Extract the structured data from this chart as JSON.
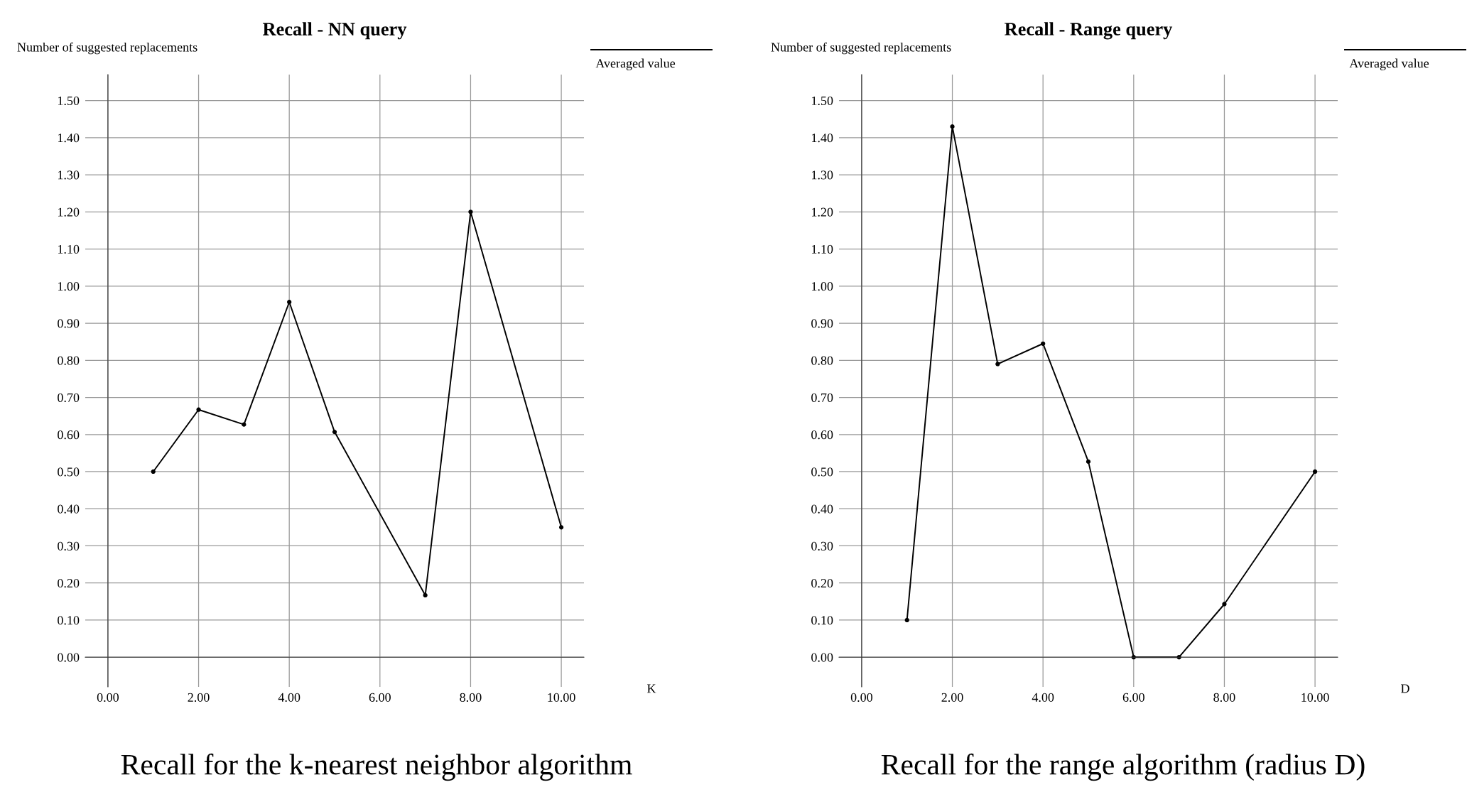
{
  "chart_data": [
    {
      "type": "line",
      "title": "Recall - NN query",
      "xlabel": "K",
      "ylabel": "Number of suggested replacements",
      "x": [
        1,
        2,
        3,
        4,
        5,
        7,
        8,
        10
      ],
      "series": [
        {
          "name": "Averaged value",
          "color": "#000000",
          "values": [
            0.5,
            0.667,
            0.627,
            0.957,
            0.607,
            0.167,
            1.2,
            0.35
          ]
        }
      ],
      "xlim": [
        -0.5,
        10.5
      ],
      "ylim": [
        -0.08,
        1.57
      ],
      "xticks": [
        {
          "value": 0,
          "label": "0.00"
        },
        {
          "value": 2,
          "label": "2.00"
        },
        {
          "value": 4,
          "label": "4.00"
        },
        {
          "value": 6,
          "label": "6.00"
        },
        {
          "value": 8,
          "label": "8.00"
        },
        {
          "value": 10,
          "label": "10.00"
        }
      ],
      "yticks": [
        {
          "value": 0,
          "label": "0.00"
        },
        {
          "value": 0.1,
          "label": "0.10"
        },
        {
          "value": 0.2,
          "label": "0.20"
        },
        {
          "value": 0.3,
          "label": "0.30"
        },
        {
          "value": 0.4,
          "label": "0.40"
        },
        {
          "value": 0.5,
          "label": "0.50"
        },
        {
          "value": 0.6,
          "label": "0.60"
        },
        {
          "value": 0.7,
          "label": "0.70"
        },
        {
          "value": 0.8,
          "label": "0.80"
        },
        {
          "value": 0.9,
          "label": "0.90"
        },
        {
          "value": 1.0,
          "label": "1.00"
        },
        {
          "value": 1.1,
          "label": "1.10"
        },
        {
          "value": 1.2,
          "label": "1.20"
        },
        {
          "value": 1.3,
          "label": "1.30"
        },
        {
          "value": 1.4,
          "label": "1.40"
        },
        {
          "value": 1.5,
          "label": "1.50"
        }
      ],
      "grid": true,
      "legend": "top right",
      "marker": "circle",
      "line_style": "solid",
      "annotations": [
        "Recall for the k-nearest neighbor algorithm"
      ]
    },
    {
      "type": "line",
      "title": "Recall - Range query",
      "xlabel": "D",
      "ylabel": "Number of suggested replacements",
      "x": [
        1,
        2,
        3,
        4,
        5,
        6,
        7,
        8,
        10
      ],
      "series": [
        {
          "name": "Averaged value",
          "color": "#000000",
          "values": [
            0.1,
            1.43,
            0.79,
            0.845,
            0.527,
            0.0,
            0.0,
            0.143,
            0.5
          ]
        }
      ],
      "xlim": [
        -0.5,
        10.5
      ],
      "ylim": [
        -0.08,
        1.57
      ],
      "xticks": [
        {
          "value": 0,
          "label": "0.00"
        },
        {
          "value": 2,
          "label": "2.00"
        },
        {
          "value": 4,
          "label": "4.00"
        },
        {
          "value": 6,
          "label": "6.00"
        },
        {
          "value": 8,
          "label": "8.00"
        },
        {
          "value": 10,
          "label": "10.00"
        }
      ],
      "yticks": [
        {
          "value": 0,
          "label": "0.00"
        },
        {
          "value": 0.1,
          "label": "0.10"
        },
        {
          "value": 0.2,
          "label": "0.20"
        },
        {
          "value": 0.3,
          "label": "0.30"
        },
        {
          "value": 0.4,
          "label": "0.40"
        },
        {
          "value": 0.5,
          "label": "0.50"
        },
        {
          "value": 0.6,
          "label": "0.60"
        },
        {
          "value": 0.7,
          "label": "0.70"
        },
        {
          "value": 0.8,
          "label": "0.80"
        },
        {
          "value": 0.9,
          "label": "0.90"
        },
        {
          "value": 1.0,
          "label": "1.00"
        },
        {
          "value": 1.1,
          "label": "1.10"
        },
        {
          "value": 1.2,
          "label": "1.20"
        },
        {
          "value": 1.3,
          "label": "1.30"
        },
        {
          "value": 1.4,
          "label": "1.40"
        },
        {
          "value": 1.5,
          "label": "1.50"
        }
      ],
      "grid": true,
      "legend": "top right",
      "marker": "circle",
      "line_style": "solid",
      "annotations": [
        "Recall for the range algorithm (radius D)"
      ]
    }
  ]
}
